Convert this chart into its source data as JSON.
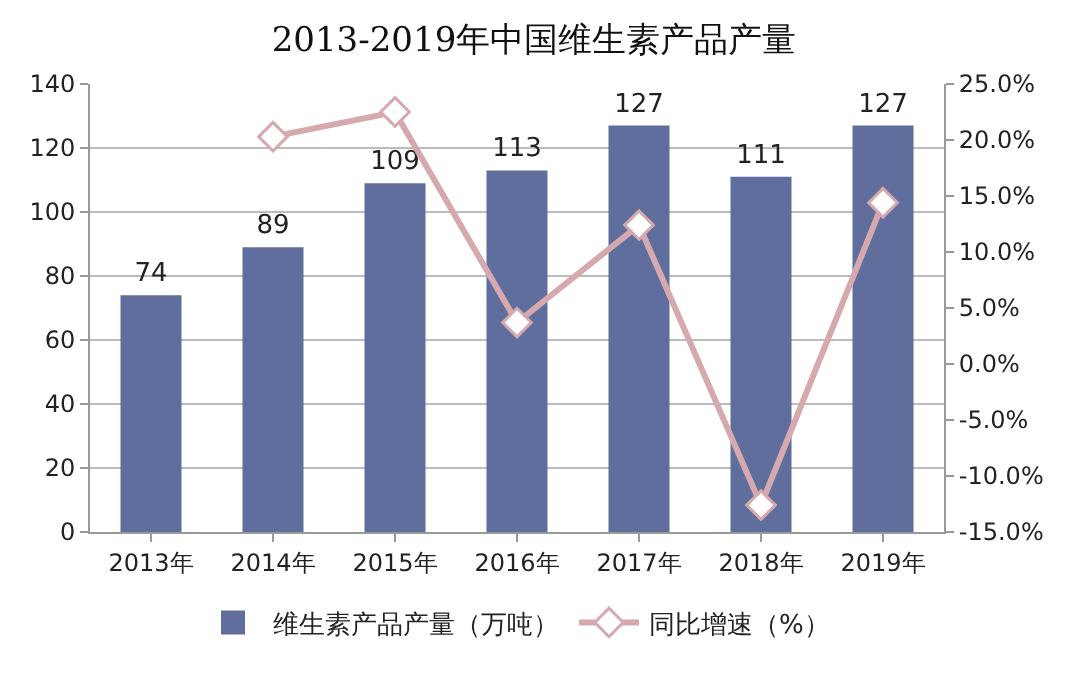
{
  "chart_data": {
    "type": "bar",
    "title": "2013-2019年中国维生素产品产量",
    "categories": [
      "2013年",
      "2014年",
      "2015年",
      "2016年",
      "2017年",
      "2018年",
      "2019年"
    ],
    "series": [
      {
        "name": "维生素产品产量（万吨）",
        "color": "#5f6e9c",
        "values": [
          74,
          89,
          109,
          113,
          127,
          111,
          127
        ],
        "value_labels": [
          "74",
          "89",
          "109",
          "113",
          "127",
          "111",
          "127"
        ]
      },
      {
        "name": "同比增速（%）",
        "type": "line",
        "axis": "y2",
        "color": "#d6a9ae",
        "marker": "diamond",
        "values": [
          null,
          20.3,
          22.5,
          3.7,
          12.4,
          -12.6,
          14.4
        ]
      }
    ],
    "ylim": [
      0,
      140
    ],
    "yticks": [
      0,
      20,
      40,
      60,
      80,
      100,
      120,
      140
    ],
    "y2lim": [
      -15,
      25
    ],
    "y2ticks": [
      {
        "value": -15,
        "label": "-15.0%"
      },
      {
        "value": -10,
        "label": "-10.0%"
      },
      {
        "value": -5,
        "label": "-5.0%"
      },
      {
        "value": 0,
        "label": "0.0%"
      },
      {
        "value": 5,
        "label": "5.0%"
      },
      {
        "value": 10,
        "label": "10.0%"
      },
      {
        "value": 15,
        "label": "15.0%"
      },
      {
        "value": 20,
        "label": "20.0%"
      },
      {
        "value": 25,
        "label": "25.0%"
      }
    ],
    "grid": "y",
    "legend": "bottom"
  }
}
